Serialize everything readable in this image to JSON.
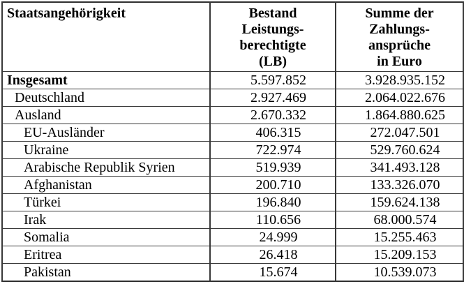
{
  "colors": {
    "background": "#ffffff",
    "text": "#000000",
    "border": "#383838"
  },
  "table": {
    "columns": [
      {
        "label": "Staatsangehörigkeit"
      },
      {
        "label": "Bestand\nLeistungs-\nberechtigte\n(LB)"
      },
      {
        "label": "Summe der\nZahlungs-\nansprüche\nin Euro"
      }
    ],
    "rows": [
      {
        "label": "Insgesamt",
        "indent": 0,
        "bold": true,
        "lb": "5.597.852",
        "euro": "3.928.935.152"
      },
      {
        "label": "Deutschland",
        "indent": 1,
        "bold": false,
        "lb": "2.927.469",
        "euro": "2.064.022.676"
      },
      {
        "label": "Ausland",
        "indent": 1,
        "bold": false,
        "lb": "2.670.332",
        "euro": "1.864.880.625"
      },
      {
        "label": "EU-Ausländer",
        "indent": 2,
        "bold": false,
        "lb": "406.315",
        "euro": "272.047.501"
      },
      {
        "label": "Ukraine",
        "indent": 2,
        "bold": false,
        "lb": "722.974",
        "euro": "529.760.624"
      },
      {
        "label": "Arabische Republik Syrien",
        "indent": 2,
        "bold": false,
        "lb": "519.939",
        "euro": "341.493.128"
      },
      {
        "label": "Afghanistan",
        "indent": 2,
        "bold": false,
        "lb": "200.710",
        "euro": "133.326.070"
      },
      {
        "label": "Türkei",
        "indent": 2,
        "bold": false,
        "lb": "196.840",
        "euro": "159.624.138"
      },
      {
        "label": "Irak",
        "indent": 2,
        "bold": false,
        "lb": "110.656",
        "euro": "68.000.574"
      },
      {
        "label": "Somalia",
        "indent": 2,
        "bold": false,
        "lb": "24.999",
        "euro": "15.255.463"
      },
      {
        "label": "Eritrea",
        "indent": 2,
        "bold": false,
        "lb": "26.418",
        "euro": "15.209.153"
      },
      {
        "label": "Pakistan",
        "indent": 2,
        "bold": false,
        "lb": "15.674",
        "euro": "10.539.073"
      }
    ]
  }
}
